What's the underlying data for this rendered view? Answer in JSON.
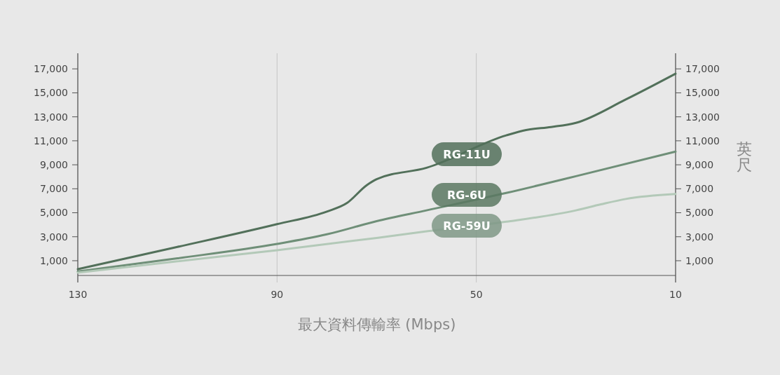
{
  "chart_data": {
    "type": "line",
    "xlabel": "最大資料傳輸率 (Mbps)",
    "y2label": "英尺",
    "xlim": [
      130,
      10
    ],
    "xticks": [
      130,
      90,
      50,
      10
    ],
    "ylim": [
      -230,
      18300
    ],
    "yticks": [
      {
        "value": 1000,
        "label": "1,000"
      },
      {
        "value": 3000,
        "label": "3,000"
      },
      {
        "value": 5000,
        "label": "5,000"
      },
      {
        "value": 7000,
        "label": "7,000"
      },
      {
        "value": 9000,
        "label": "9,000"
      },
      {
        "value": 11000,
        "label": "11,000"
      },
      {
        "value": 13000,
        "label": "13,000"
      },
      {
        "value": 15000,
        "label": "15,000"
      },
      {
        "value": 17000,
        "label": "17,000"
      }
    ],
    "y2lim": [
      -230,
      18300
    ],
    "y2ticks": [
      {
        "value": 1000,
        "label": "1,000"
      },
      {
        "value": 3000,
        "label": "3,000"
      },
      {
        "value": 5000,
        "label": "5,000"
      },
      {
        "value": 7000,
        "label": "7,000"
      },
      {
        "value": 9000,
        "label": "9,000"
      },
      {
        "value": 11000,
        "label": "11,000"
      },
      {
        "value": 13000,
        "label": "13,000"
      },
      {
        "value": 15000,
        "label": "15,000"
      },
      {
        "value": 17000,
        "label": "17,000"
      }
    ],
    "grid": "x",
    "marker": "none",
    "line_style": "solid",
    "series": [
      {
        "name": "RG-11U",
        "color": "#52705a",
        "x": [
          130,
          110,
          90,
          80,
          76,
          72,
          70,
          60,
          44,
          40,
          35,
          30,
          20,
          10
        ],
        "values": [
          300,
          2150,
          4050,
          5100,
          5800,
          7300,
          7800,
          8750,
          11450,
          11900,
          12150,
          12500,
          14450,
          16600
        ]
      },
      {
        "name": "RG-6U",
        "color": "#6f8f78",
        "x": [
          130,
          110,
          90,
          80,
          70,
          60,
          44,
          30,
          10
        ],
        "values": [
          100,
          1200,
          2400,
          3200,
          4300,
          5200,
          6650,
          8050,
          10100
        ]
      },
      {
        "name": "RG-59U",
        "color": "#b3c9b8",
        "x": [
          130,
          110,
          90,
          70,
          60,
          44,
          30,
          25,
          20,
          10
        ],
        "values": [
          0,
          950,
          1880,
          2900,
          3450,
          4250,
          5200,
          5700,
          6150,
          6560
        ]
      }
    ]
  }
}
